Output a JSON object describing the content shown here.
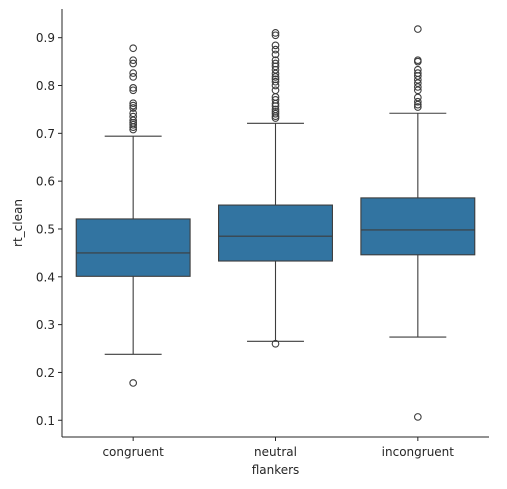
{
  "chart_data": {
    "type": "box",
    "xlabel": "flankers",
    "ylabel": "rt_clean",
    "categories": [
      "congruent",
      "neutral",
      "incongruent"
    ],
    "ylim": [
      0.065,
      0.96
    ],
    "yticks": [
      0.1,
      0.2,
      0.3,
      0.4,
      0.5,
      0.6,
      0.7,
      0.8,
      0.9
    ],
    "yticklabels": [
      "0.1",
      "0.2",
      "0.3",
      "0.4",
      "0.5",
      "0.6",
      "0.7",
      "0.8",
      "0.9"
    ],
    "grid": false,
    "box_color": "#3274a1",
    "line_color": "#3d3d3d",
    "boxes": [
      {
        "category": "congruent",
        "whisker_low": 0.238,
        "q1": 0.401,
        "median": 0.45,
        "q3": 0.521,
        "whisker_high": 0.694,
        "outliers": [
          0.178,
          0.708,
          0.713,
          0.718,
          0.722,
          0.727,
          0.735,
          0.742,
          0.753,
          0.758,
          0.763,
          0.79,
          0.795,
          0.818,
          0.826,
          0.846,
          0.853,
          0.878
        ]
      },
      {
        "category": "neutral",
        "whisker_low": 0.265,
        "q1": 0.433,
        "median": 0.485,
        "q3": 0.55,
        "whisker_high": 0.721,
        "outliers": [
          0.26,
          0.732,
          0.736,
          0.741,
          0.745,
          0.75,
          0.757,
          0.762,
          0.77,
          0.776,
          0.79,
          0.8,
          0.808,
          0.813,
          0.818,
          0.825,
          0.833,
          0.84,
          0.846,
          0.853,
          0.865,
          0.875,
          0.884,
          0.905,
          0.91
        ]
      },
      {
        "category": "incongruent",
        "whisker_low": 0.274,
        "q1": 0.446,
        "median": 0.498,
        "q3": 0.565,
        "whisker_high": 0.742,
        "outliers": [
          0.107,
          0.755,
          0.76,
          0.766,
          0.775,
          0.79,
          0.797,
          0.805,
          0.812,
          0.82,
          0.826,
          0.833,
          0.85,
          0.853,
          0.918
        ]
      }
    ]
  }
}
